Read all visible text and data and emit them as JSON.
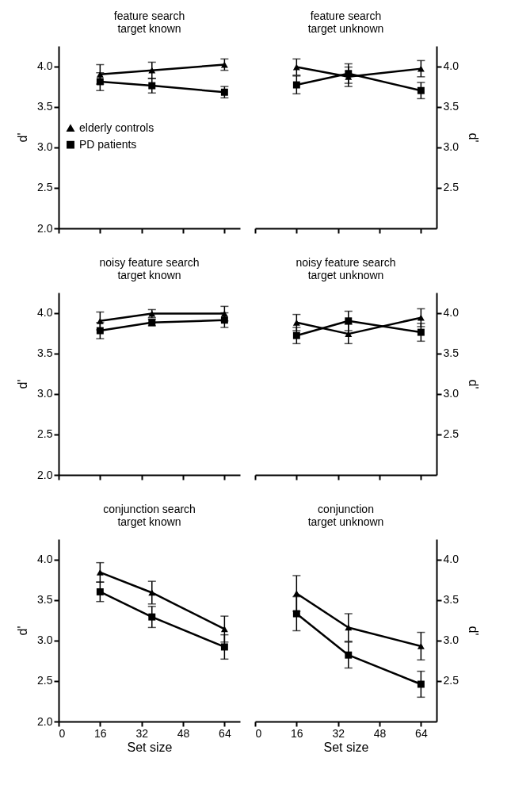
{
  "chart_data": [
    {
      "type": "line",
      "title": "feature search\ntarget known",
      "ylabel": "d'",
      "x": [
        16,
        36,
        64
      ],
      "xlim": [
        0,
        70
      ],
      "xticks": [
        0,
        16,
        32,
        48,
        64
      ],
      "ylim": [
        2,
        4.25
      ],
      "yticks": [
        {
          "value": 2,
          "label": "2.0"
        },
        {
          "value": 2.5,
          "label": "2.5"
        },
        {
          "value": 3,
          "label": "3.0"
        },
        {
          "value": 3.5,
          "label": "3.5"
        },
        {
          "value": 4,
          "label": "4.0"
        }
      ],
      "tick_labels": "y",
      "legend": "left",
      "series": [
        {
          "name": "elderly controls",
          "color": "#000000",
          "marker": "triangle",
          "values": [
            3.9,
            3.95,
            4.02
          ],
          "errors": [
            0.12,
            0.1,
            0.07
          ]
        },
        {
          "name": "PD patients",
          "color": "#000000",
          "marker": "square",
          "values": [
            3.81,
            3.76,
            3.68
          ],
          "errors": [
            0.11,
            0.09,
            0.07
          ]
        }
      ]
    },
    {
      "type": "line",
      "title": "feature search\ntarget unknown",
      "y2label": "d'",
      "x": [
        16,
        36,
        64
      ],
      "xlim": [
        0,
        70
      ],
      "xticks": [
        0,
        16,
        32,
        48,
        64
      ],
      "y2lim": [
        2,
        4.25
      ],
      "y2ticks": [
        {
          "value": 2.5,
          "label": "2.5"
        },
        {
          "value": 3,
          "label": "3.0"
        },
        {
          "value": 3.5,
          "label": "3.5"
        },
        {
          "value": 4,
          "label": "4.0"
        }
      ],
      "tick_labels": "y",
      "series": [
        {
          "color": "#000000",
          "marker": "triangle",
          "axis": "y2",
          "values": [
            3.99,
            3.87,
            3.97
          ],
          "errors": [
            0.1,
            0.12,
            0.1
          ]
        },
        {
          "color": "#000000",
          "marker": "square",
          "axis": "y2",
          "values": [
            3.77,
            3.91,
            3.7
          ],
          "errors": [
            0.11,
            0.12,
            0.1
          ]
        }
      ]
    },
    {
      "type": "line",
      "title": "noisy feature search\ntarget known",
      "ylabel": "d'",
      "x": [
        16,
        36,
        64
      ],
      "xlim": [
        0,
        70
      ],
      "xticks": [
        0,
        16,
        32,
        48,
        64
      ],
      "ylim": [
        2,
        4.25
      ],
      "yticks": [
        {
          "value": 2,
          "label": "2.0"
        },
        {
          "value": 2.5,
          "label": "2.5"
        },
        {
          "value": 3,
          "label": "3.0"
        },
        {
          "value": 3.5,
          "label": "3.5"
        },
        {
          "value": 4,
          "label": "4.0"
        }
      ],
      "tick_labels": "y",
      "series": [
        {
          "color": "#000000",
          "marker": "triangle",
          "values": [
            3.9,
            3.99,
            3.99
          ],
          "errors": [
            0.11,
            0.05,
            0.09
          ]
        },
        {
          "color": "#000000",
          "marker": "square",
          "values": [
            3.78,
            3.88,
            3.91
          ],
          "errors": [
            0.1,
            0.04,
            0.09
          ]
        }
      ]
    },
    {
      "type": "line",
      "title": "noisy feature search\ntarget unknown",
      "y2label": "d'",
      "x": [
        16,
        36,
        64
      ],
      "xlim": [
        0,
        70
      ],
      "xticks": [
        0,
        16,
        32,
        48,
        64
      ],
      "y2lim": [
        2,
        4.25
      ],
      "y2ticks": [
        {
          "value": 2.5,
          "label": "2.5"
        },
        {
          "value": 3,
          "label": "3.0"
        },
        {
          "value": 3.5,
          "label": "3.5"
        },
        {
          "value": 4,
          "label": "4.0"
        }
      ],
      "tick_labels": "y",
      "series": [
        {
          "color": "#000000",
          "marker": "triangle",
          "axis": "y2",
          "values": [
            3.88,
            3.74,
            3.94
          ],
          "errors": [
            0.1,
            0.12,
            0.11
          ]
        },
        {
          "color": "#000000",
          "marker": "square",
          "axis": "y2",
          "values": [
            3.72,
            3.9,
            3.76
          ],
          "errors": [
            0.1,
            0.12,
            0.11
          ]
        }
      ]
    },
    {
      "type": "line",
      "title": "conjunction search\ntarget known",
      "xlabel": "Set size",
      "ylabel": "d'",
      "x": [
        16,
        36,
        64
      ],
      "xlim": [
        0,
        70
      ],
      "xticks": [
        0,
        16,
        32,
        48,
        64
      ],
      "ylim": [
        2,
        4.25
      ],
      "yticks": [
        {
          "value": 2,
          "label": "2.0"
        },
        {
          "value": 2.5,
          "label": "2.5"
        },
        {
          "value": 3,
          "label": "3.0"
        },
        {
          "value": 3.5,
          "label": "3.5"
        },
        {
          "value": 4,
          "label": "4.0"
        }
      ],
      "series": [
        {
          "color": "#000000",
          "marker": "triangle",
          "values": [
            3.84,
            3.59,
            3.14
          ],
          "errors": [
            0.12,
            0.14,
            0.16
          ]
        },
        {
          "color": "#000000",
          "marker": "square",
          "values": [
            3.6,
            3.29,
            2.92
          ],
          "errors": [
            0.12,
            0.13,
            0.15
          ]
        }
      ]
    },
    {
      "type": "line",
      "title": "conjunction\ntarget unknown",
      "xlabel": "Set size",
      "y2label": "d'",
      "x": [
        16,
        36,
        64
      ],
      "xlim": [
        0,
        70
      ],
      "xticks": [
        0,
        16,
        32,
        48,
        64
      ],
      "y2lim": [
        2,
        4.25
      ],
      "y2ticks": [
        {
          "value": 2.5,
          "label": "2.5"
        },
        {
          "value": 3,
          "label": "3.0"
        },
        {
          "value": 3.5,
          "label": "3.5"
        },
        {
          "value": 4,
          "label": "4.0"
        }
      ],
      "series": [
        {
          "color": "#000000",
          "marker": "triangle",
          "axis": "y2",
          "values": [
            3.58,
            3.16,
            2.93
          ],
          "errors": [
            0.22,
            0.17,
            0.17
          ]
        },
        {
          "color": "#000000",
          "marker": "square",
          "axis": "y2",
          "values": [
            3.33,
            2.82,
            2.46
          ],
          "errors": [
            0.21,
            0.16,
            0.16
          ]
        }
      ]
    }
  ]
}
